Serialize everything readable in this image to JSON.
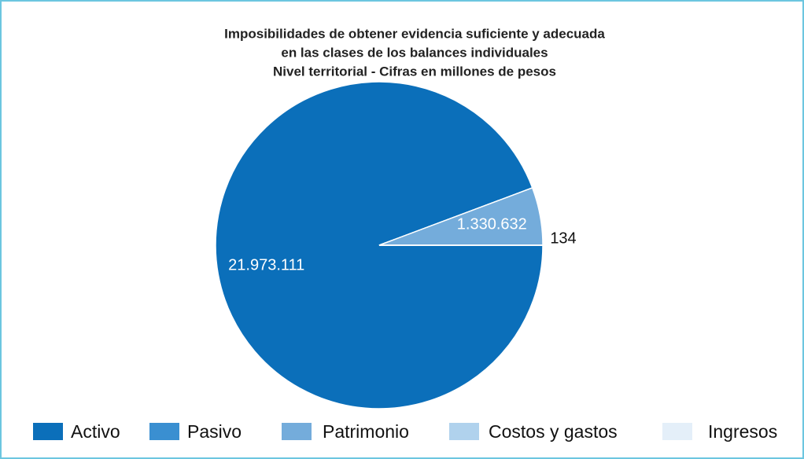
{
  "chart_data": {
    "type": "pie",
    "title": [
      "Imposibilidades de obtener evidencia suficiente y adecuada",
      "en las clases de los balances individuales",
      "Nivel territorial - Cifras en millones de pesos"
    ],
    "categories": [
      "Activo",
      "Pasivo",
      "Patrimonio",
      "Costos y gastos",
      "Ingresos"
    ],
    "values": [
      21973111,
      0,
      1330632,
      134,
      0
    ],
    "value_labels": [
      "21.973.111",
      null,
      "1.330.632",
      "134",
      null
    ],
    "colors": [
      "#0b6fba",
      "#3a8fd1",
      "#74acdb",
      "#b0d2ed",
      "#e4eff9"
    ],
    "legend": "bottom"
  }
}
